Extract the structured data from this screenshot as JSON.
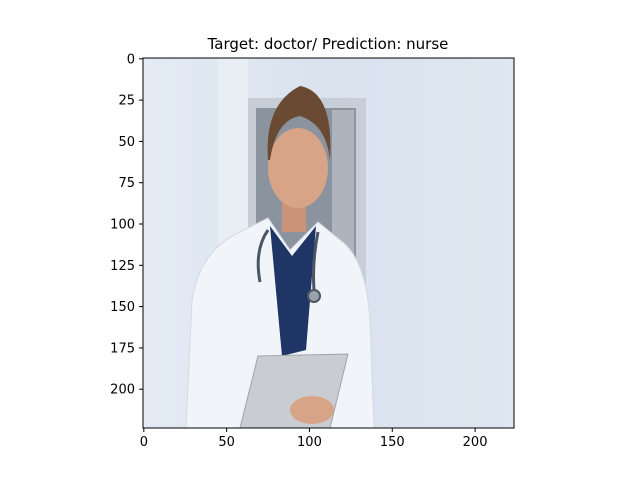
{
  "title": "Target: doctor/ Prediction: nurse",
  "axes": {
    "xlim": [
      -0.5,
      223.5
    ],
    "ylim": [
      223.5,
      -0.5
    ],
    "x_ticks": [
      {
        "value": 0,
        "label": "0"
      },
      {
        "value": 50,
        "label": "50"
      },
      {
        "value": 100,
        "label": "100"
      },
      {
        "value": 150,
        "label": "150"
      },
      {
        "value": 200,
        "label": "200"
      }
    ],
    "y_ticks": [
      {
        "value": 0,
        "label": "0"
      },
      {
        "value": 25,
        "label": "25"
      },
      {
        "value": 50,
        "label": "50"
      },
      {
        "value": 75,
        "label": "75"
      },
      {
        "value": 100,
        "label": "100"
      },
      {
        "value": 125,
        "label": "125"
      },
      {
        "value": 150,
        "label": "150"
      },
      {
        "value": 175,
        "label": "175"
      },
      {
        "value": 200,
        "label": "200"
      }
    ]
  },
  "colors": {
    "wall": "#dde6f0",
    "coat": "#f1f4f8",
    "shirt": "#1f3566",
    "skin": "#d8a488",
    "hair": "#6a4a33",
    "door_frame": "#c7ced8",
    "door_inside": "#8b939e",
    "clipboard": "#c9cdd2"
  }
}
